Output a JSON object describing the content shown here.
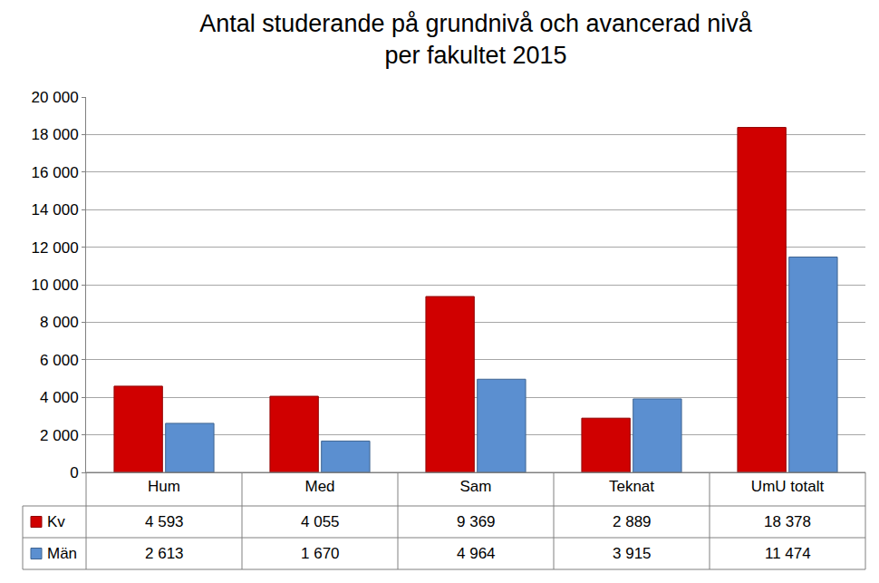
{
  "chart_data": {
    "type": "bar",
    "title": "Antal studerande på grundnivå och avancerad nivå\nper fakultet 2015",
    "categories": [
      "Hum",
      "Med",
      "Sam",
      "Teknat",
      "UmU totalt"
    ],
    "series": [
      {
        "name": "Kv",
        "color": "#d00000",
        "values": [
          4593,
          4055,
          9369,
          2889,
          18378
        ],
        "value_labels": [
          "4 593",
          "4 055",
          "9 369",
          "2 889",
          "18 378"
        ]
      },
      {
        "name": "Män",
        "color": "#5b8fd0",
        "values": [
          2613,
          1670,
          4964,
          3915,
          11474
        ],
        "value_labels": [
          "2 613",
          "1 670",
          "4 964",
          "3 915",
          "11 474"
        ]
      }
    ],
    "ylim": [
      0,
      20000
    ],
    "yticks": [
      0,
      {
        "value": 2000,
        "label": "2 000"
      },
      {
        "value": 4000,
        "label": "4 000"
      },
      {
        "value": 6000,
        "label": "6 000"
      },
      {
        "value": 8000,
        "label": "8 000"
      },
      {
        "value": 10000,
        "label": "10 000"
      },
      {
        "value": 12000,
        "label": "12 000"
      },
      {
        "value": 14000,
        "label": "14 000"
      },
      {
        "value": 16000,
        "label": "16 000"
      },
      {
        "value": 18000,
        "label": "18 000"
      },
      {
        "value": 20000,
        "label": "20 000"
      }
    ],
    "grid": true
  }
}
